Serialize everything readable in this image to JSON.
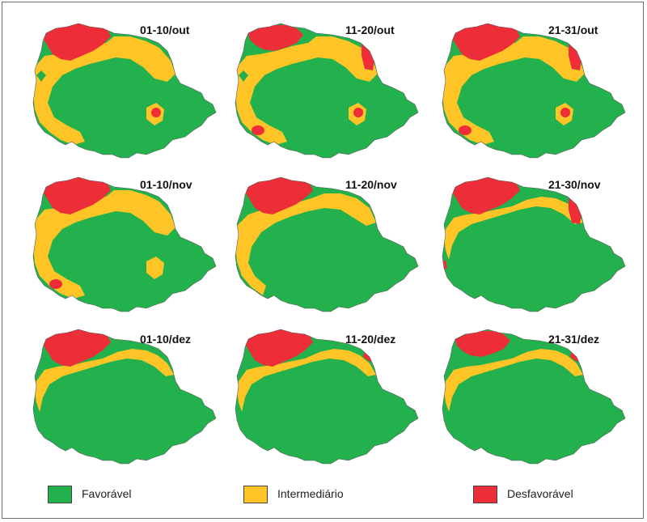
{
  "colors": {
    "favoravel": "#22b14c",
    "intermediario": "#ffc425",
    "desfavoravel": "#ed2e38",
    "speckle": "#8a8a8a"
  },
  "panels": [
    {
      "label": "01-10/out",
      "red": "high",
      "yellow": "high",
      "spots": [
        "west",
        "south-east"
      ]
    },
    {
      "label": "11-20/out",
      "red": "medium",
      "yellow": "high",
      "spots": [
        "west",
        "south-west",
        "south-east",
        "east-strip"
      ]
    },
    {
      "label": "21-31/out",
      "red": "high",
      "yellow": "high",
      "spots": [
        "south-west",
        "south-east",
        "east-strip"
      ]
    },
    {
      "label": "01-10/nov",
      "red": "high",
      "yellow": "high",
      "spots": [
        "south-west"
      ]
    },
    {
      "label": "11-20/nov",
      "red": "high",
      "yellow": "medium",
      "spots": []
    },
    {
      "label": "21-30/nov",
      "red": "high",
      "yellow": "low",
      "spots": [
        "east-strip",
        "west-edge"
      ]
    },
    {
      "label": "01-10/dez",
      "red": "high",
      "yellow": "low",
      "spots": []
    },
    {
      "label": "11-20/dez",
      "red": "high",
      "yellow": "low",
      "spots": [
        "east-dot"
      ]
    },
    {
      "label": "21-31/dez",
      "red": "medium",
      "yellow": "low",
      "spots": [
        "east-dot"
      ]
    }
  ],
  "legend": [
    {
      "label": "Favorável",
      "color": "#22b14c"
    },
    {
      "label": "Intermediário",
      "color": "#ffc425"
    },
    {
      "label": "Desfavorável",
      "color": "#ed2e38"
    }
  ]
}
